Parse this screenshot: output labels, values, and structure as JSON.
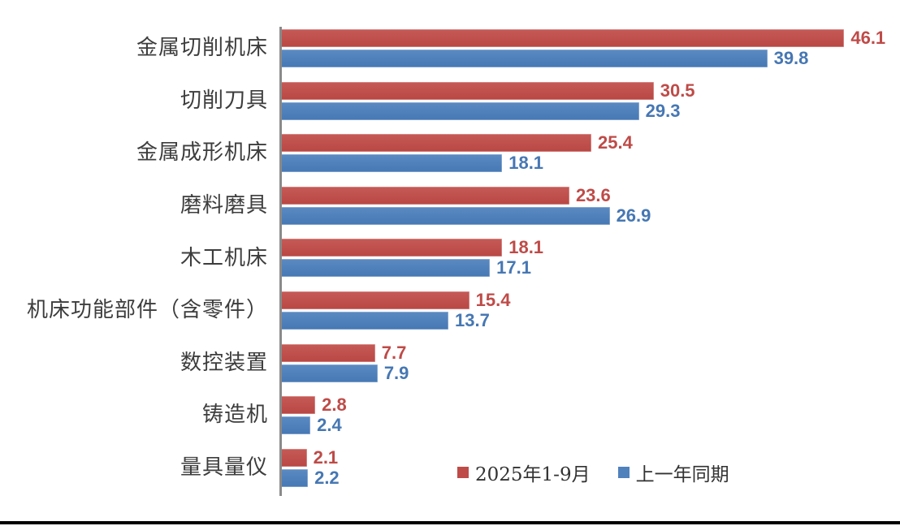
{
  "chart_data": {
    "type": "bar",
    "orientation": "horizontal",
    "title": "",
    "xlabel": "",
    "ylabel": "",
    "xlim": [
      0,
      50
    ],
    "grid": false,
    "legend_position": "inside-bottom-right",
    "categories": [
      "金属切削机床",
      "切削刀具",
      "金属成形机床",
      "磨料磨具",
      "木工机床",
      "机床功能部件（含零件）",
      "数控装置",
      "铸造机",
      "量具量仪"
    ],
    "series": [
      {
        "name": "2025年1-9月",
        "color": "#be4b48",
        "values": [
          46.1,
          30.5,
          25.4,
          23.6,
          18.1,
          15.4,
          7.7,
          2.8,
          2.1
        ]
      },
      {
        "name": "上一年同期",
        "color": "#4f81bd",
        "values": [
          39.8,
          29.3,
          18.1,
          26.9,
          17.1,
          13.7,
          7.9,
          2.4,
          2.2
        ]
      }
    ],
    "value_labels_shown": true,
    "axis_line_color": "#8a8a8a",
    "bottom_rule_color": "#000000",
    "background_color": "#ffffff"
  }
}
